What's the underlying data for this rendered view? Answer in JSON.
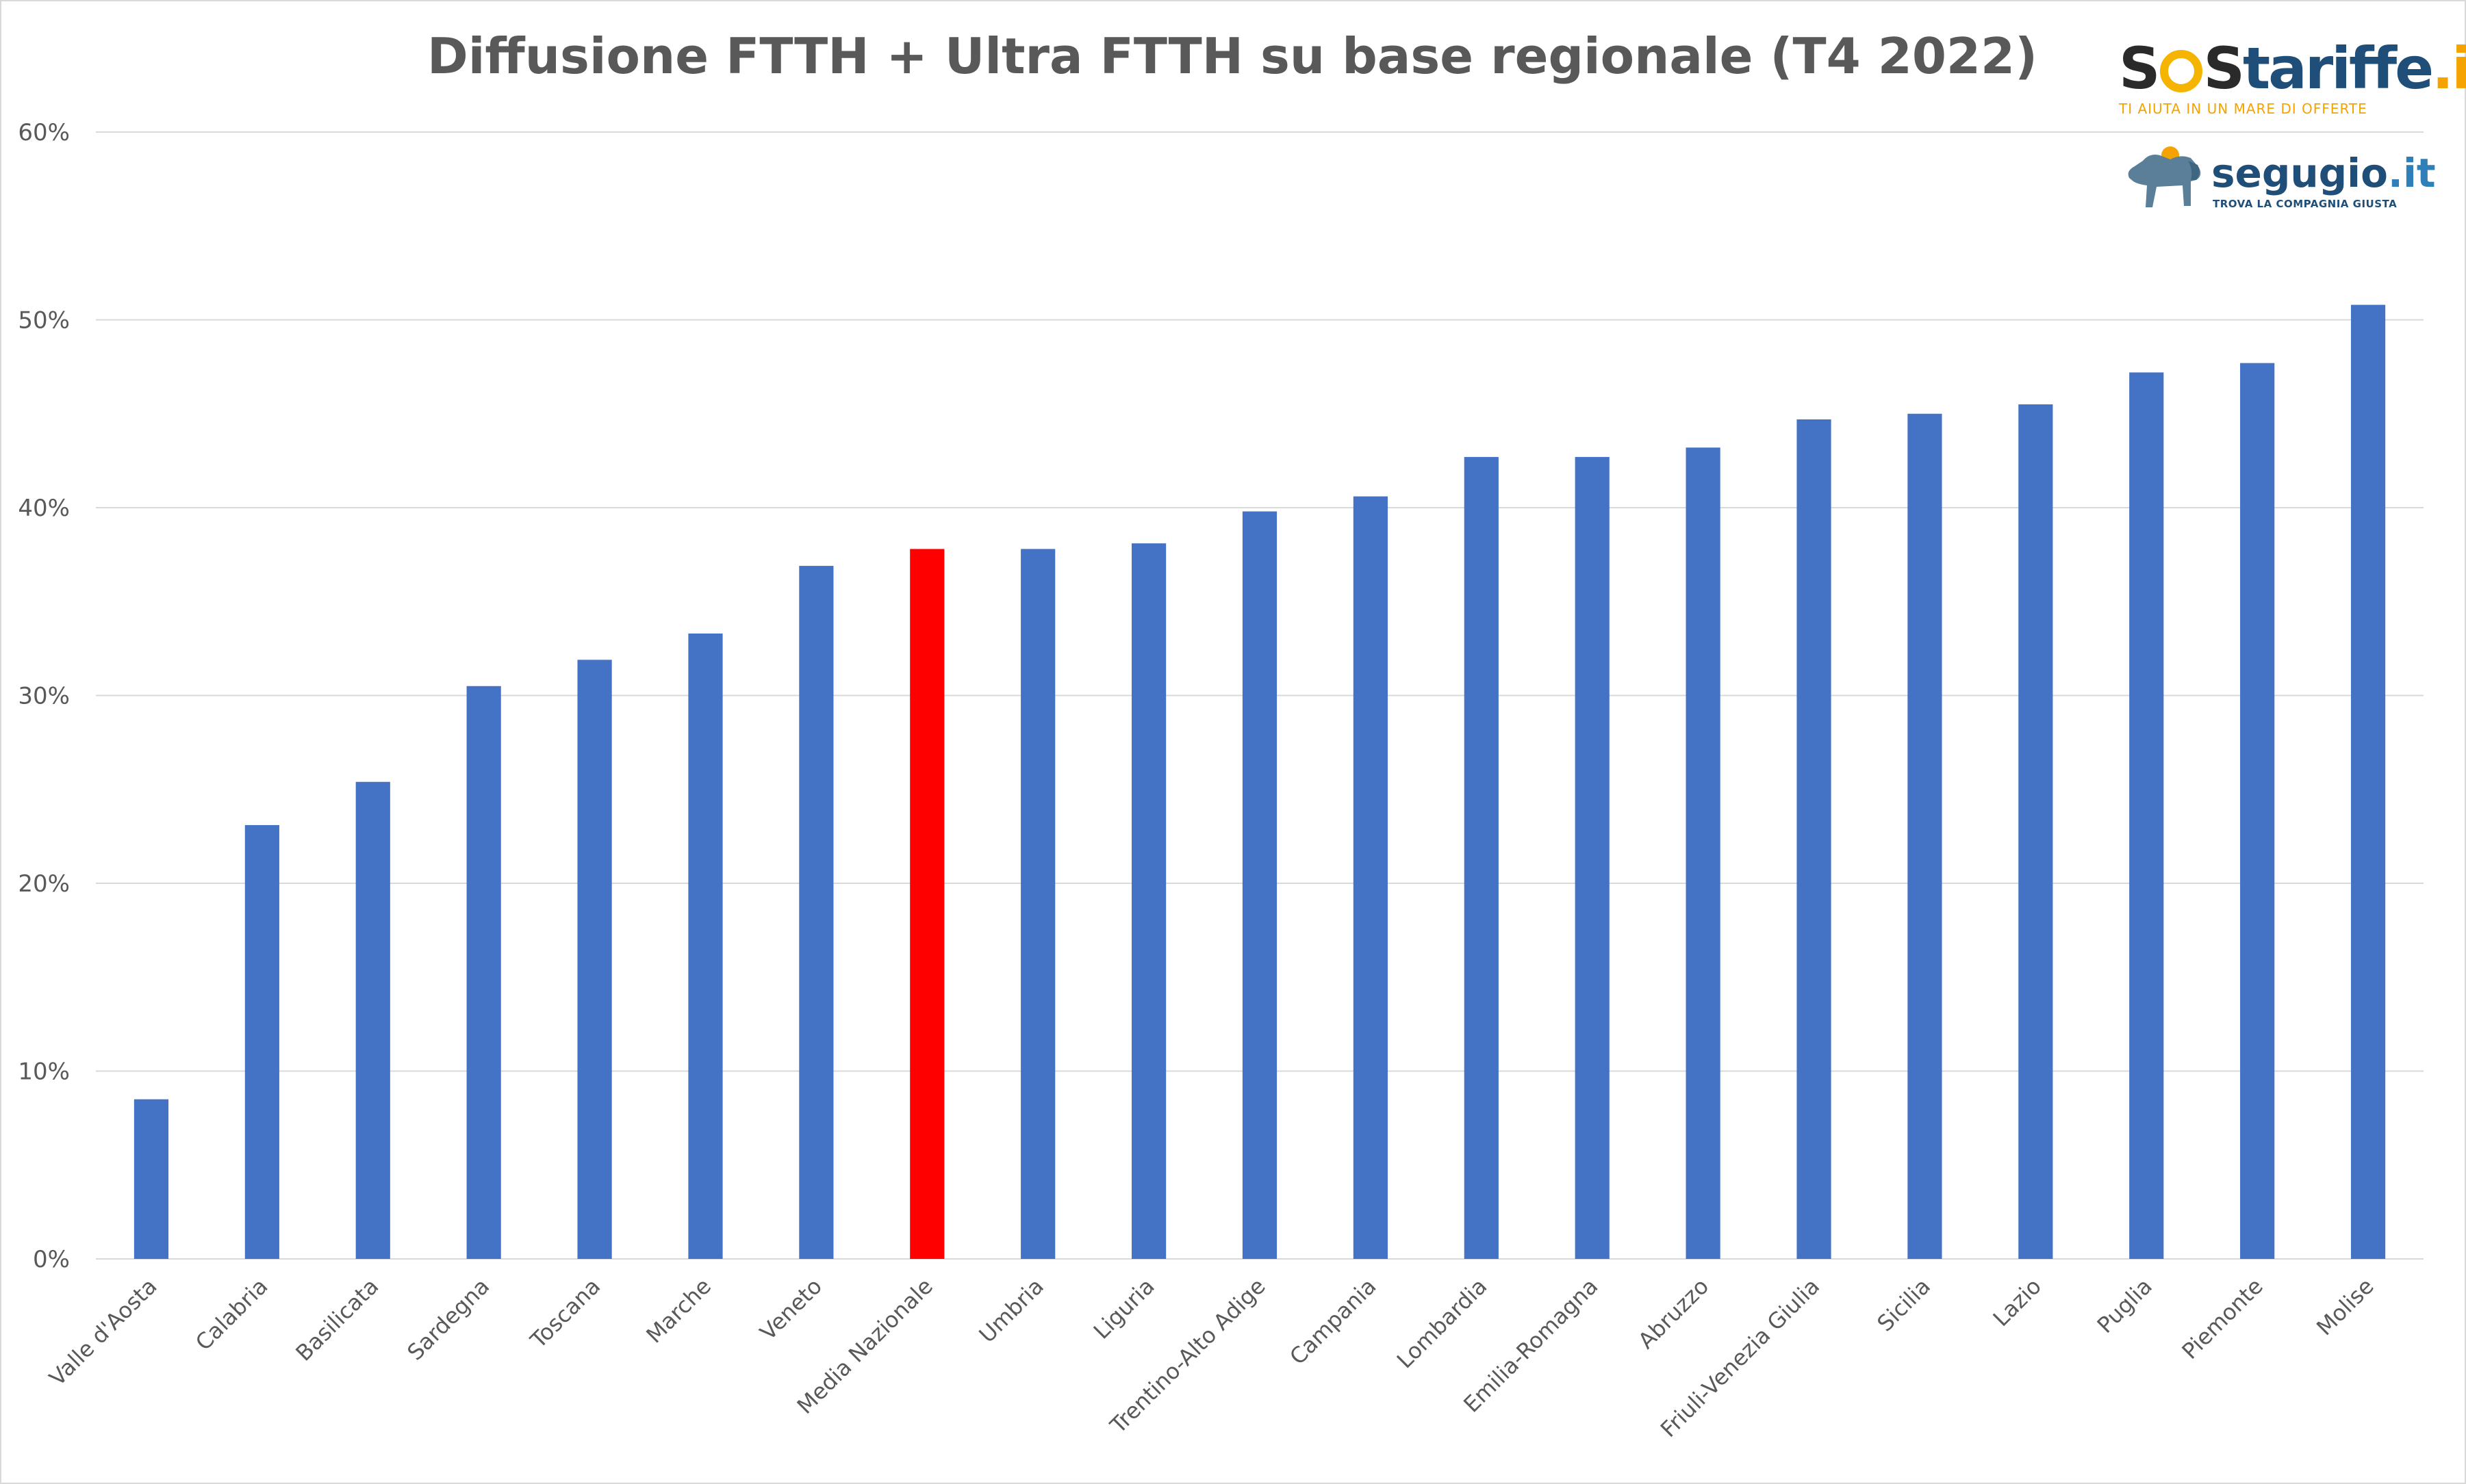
{
  "chart_data": {
    "type": "bar",
    "title": "Diffusione FTTH + Ultra FTTH su base regionale (T4 2022)",
    "xlabel": "",
    "ylabel": "",
    "ylim": [
      0,
      60
    ],
    "yticks": [
      "0%",
      "10%",
      "20%",
      "30%",
      "40%",
      "50%",
      "60%"
    ],
    "grid": true,
    "legend": "none",
    "categories": [
      "Valle d'Aosta",
      "Calabria",
      "Basilicata",
      "Sardegna",
      "Toscana",
      "Marche",
      "Veneto",
      "Media Nazionale",
      "Umbria",
      "Liguria",
      "Trentino-Alto Adige",
      "Campania",
      "Lombardia",
      "Emilia-Romagna",
      "Abruzzo",
      "Friuli-Venezia Giulia",
      "Sicilia",
      "Lazio",
      "Puglia",
      "Piemonte",
      "Molise"
    ],
    "values": [
      8.5,
      23.1,
      25.4,
      30.5,
      31.9,
      33.3,
      36.9,
      37.8,
      37.8,
      38.1,
      39.8,
      40.6,
      42.7,
      42.7,
      43.2,
      44.7,
      45.0,
      45.5,
      47.2,
      47.7,
      50.8
    ],
    "highlight_category": "Media Nazionale",
    "colors": {
      "bar": "#4472c4",
      "highlight": "#ff0000",
      "grid": "#d9d9d9",
      "text": "#595959"
    }
  },
  "logos": {
    "sostariffe": {
      "part1": "S",
      "part2": "S",
      "part3": "tariffe",
      "part4": ".it",
      "tagline": "TI AIUTA IN UN MARE DI OFFERTE"
    },
    "segugio": {
      "name": "segugio",
      "suffix": ".it",
      "tagline": "TROVA LA COMPAGNIA GIUSTA",
      "icon": "dog-icon"
    }
  }
}
